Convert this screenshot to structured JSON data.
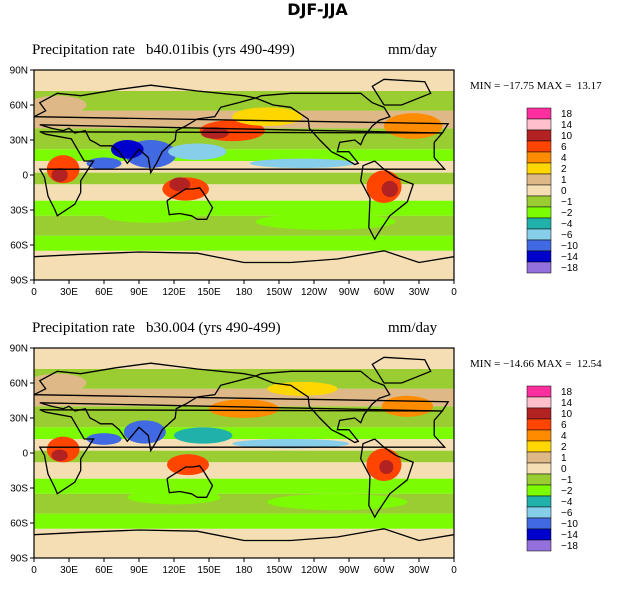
{
  "title": "DJF-JJA",
  "colorscale": {
    "labels": [
      "18",
      "14",
      "10",
      "6",
      "4",
      "2",
      "1",
      "0",
      "−1",
      "−2",
      "−4",
      "−6",
      "−10",
      "−14",
      "−18"
    ],
    "colors": [
      "#ff2fa0",
      "#ffc0cb",
      "#b22222",
      "#ff4500",
      "#ff8c00",
      "#ffd700",
      "#deb887",
      "#f5deb3",
      "#9acd32",
      "#7cfc00",
      "#20b2aa",
      "#87ceeb",
      "#4169e1",
      "#0000cd",
      "#9370db"
    ]
  },
  "axes": {
    "lat_labels": [
      "90N",
      "60N",
      "30N",
      "0",
      "30S",
      "60S",
      "90S"
    ],
    "lon_labels": [
      "0",
      "30E",
      "60E",
      "90E",
      "120E",
      "150E",
      "180",
      "150W",
      "120W",
      "90W",
      "60W",
      "30W",
      "0"
    ]
  },
  "panels": [
    {
      "title": "Precipitation rate",
      "subtitle": "b40.01ibis (yrs 490-499)",
      "units": "mm/day",
      "stats": "MIN = −17.75 MAX =  13.17"
    },
    {
      "title": "Precipitation rate",
      "subtitle": "b30.004 (yrs 490-499)",
      "units": "mm/day",
      "stats": "MIN = −14.66 MAX =  12.54"
    }
  ],
  "map_fields": [
    {
      "blobs": [
        {
          "lon": 25,
          "lat": 5,
          "rx": 14,
          "ry": 12,
          "c": 3
        },
        {
          "lon": 22,
          "lat": 0,
          "rx": 7,
          "ry": 6,
          "c": 2
        },
        {
          "lon": 130,
          "lat": -12,
          "rx": 20,
          "ry": 10,
          "c": 3
        },
        {
          "lon": 125,
          "lat": -8,
          "rx": 9,
          "ry": 6,
          "c": 2
        },
        {
          "lon": 170,
          "lat": 38,
          "rx": 28,
          "ry": 9,
          "c": 3
        },
        {
          "lon": 155,
          "lat": 36,
          "rx": 12,
          "ry": 5,
          "c": 2
        },
        {
          "lon": 300,
          "lat": -10,
          "rx": 15,
          "ry": 14,
          "c": 3
        },
        {
          "lon": 305,
          "lat": -12,
          "rx": 7,
          "ry": 7,
          "c": 2
        },
        {
          "lon": 325,
          "lat": 42,
          "rx": 25,
          "ry": 11,
          "c": 4
        },
        {
          "lon": 200,
          "lat": 50,
          "rx": 30,
          "ry": 8,
          "c": 5
        },
        {
          "lon": 100,
          "lat": 18,
          "rx": 22,
          "ry": 12,
          "c": 12
        },
        {
          "lon": 80,
          "lat": 22,
          "rx": 14,
          "ry": 8,
          "c": 13
        },
        {
          "lon": 140,
          "lat": 20,
          "rx": 25,
          "ry": 7,
          "c": 11
        },
        {
          "lon": 230,
          "lat": 10,
          "rx": 45,
          "ry": 4,
          "c": 11
        },
        {
          "lon": 60,
          "lat": 10,
          "rx": 15,
          "ry": 5,
          "c": 12
        },
        {
          "lon": 100,
          "lat": -35,
          "rx": 40,
          "ry": 6,
          "c": 9
        },
        {
          "lon": 250,
          "lat": -40,
          "rx": 60,
          "ry": 7,
          "c": 9
        },
        {
          "lon": 20,
          "lat": 60,
          "rx": 25,
          "ry": 8,
          "c": 6
        }
      ]
    },
    {
      "blobs": [
        {
          "lon": 25,
          "lat": 3,
          "rx": 14,
          "ry": 11,
          "c": 3
        },
        {
          "lon": 22,
          "lat": -2,
          "rx": 7,
          "ry": 5,
          "c": 2
        },
        {
          "lon": 132,
          "lat": -10,
          "rx": 18,
          "ry": 9,
          "c": 3
        },
        {
          "lon": 180,
          "lat": 38,
          "rx": 30,
          "ry": 8,
          "c": 4
        },
        {
          "lon": 300,
          "lat": -10,
          "rx": 15,
          "ry": 14,
          "c": 3
        },
        {
          "lon": 302,
          "lat": -12,
          "rx": 6,
          "ry": 6,
          "c": 2
        },
        {
          "lon": 320,
          "lat": 40,
          "rx": 22,
          "ry": 9,
          "c": 4
        },
        {
          "lon": 230,
          "lat": 55,
          "rx": 30,
          "ry": 6,
          "c": 5
        },
        {
          "lon": 95,
          "lat": 18,
          "rx": 18,
          "ry": 10,
          "c": 12
        },
        {
          "lon": 145,
          "lat": 15,
          "rx": 25,
          "ry": 7,
          "c": 10
        },
        {
          "lon": 220,
          "lat": 8,
          "rx": 50,
          "ry": 4,
          "c": 11
        },
        {
          "lon": 60,
          "lat": 12,
          "rx": 15,
          "ry": 5,
          "c": 12
        },
        {
          "lon": 120,
          "lat": -38,
          "rx": 40,
          "ry": 6,
          "c": 9
        },
        {
          "lon": 260,
          "lat": -42,
          "rx": 60,
          "ry": 7,
          "c": 9
        },
        {
          "lon": 20,
          "lat": 60,
          "rx": 25,
          "ry": 8,
          "c": 6
        }
      ]
    }
  ]
}
